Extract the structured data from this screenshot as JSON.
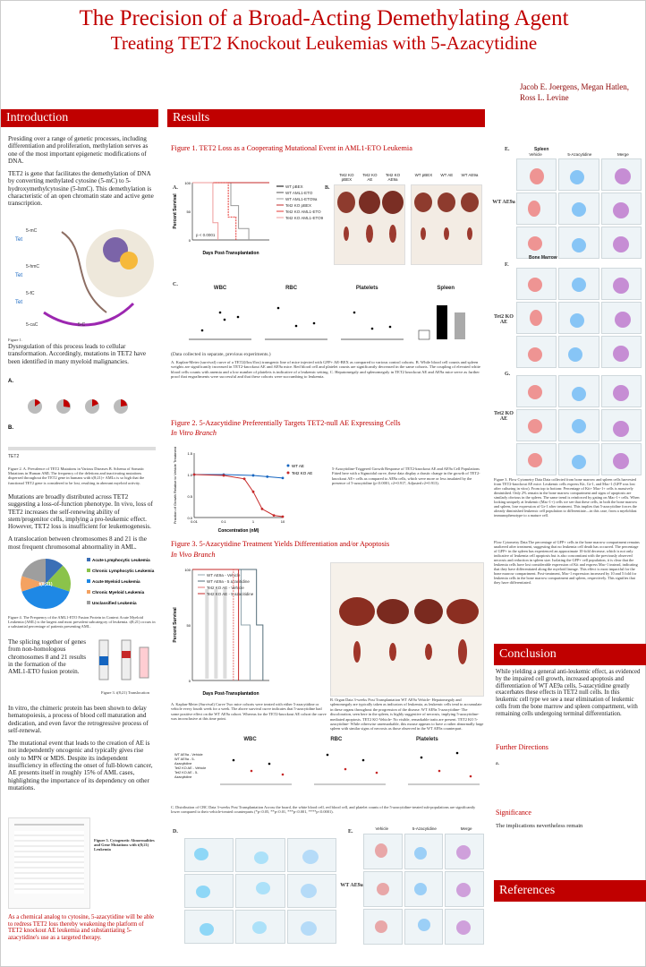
{
  "title_line1": "The Precision of a Broad-Acting Demethylating Agent",
  "title_line2": "Treating TET2 Knockout Leukemias with 5-Azacytidine",
  "authors": [
    "Jacob E. Joergens, Megan Hatlen,",
    "Ross L. Levine"
  ],
  "sections": {
    "introduction": "Introduction",
    "results": "Results",
    "conclusion": "Conclusion",
    "references": "References"
  },
  "intro": {
    "p1": "Presiding over a range of genetic processes, including differentiation and proliferation, methylation serves as one of the most important epigenetic modifications of DNA.",
    "p2": "TET2 is gene that facilitates the demethylation of DNA by converting methylated cytosine (5-mC) to 5-hydroxymethylcytosine (5-hmC). This demethylation is characteristic of an open chromatin state and active gene transcription.",
    "fig1_label": "Figure 1.",
    "p3": "Dysregulation of this process leads to cellular transformation. Accordingly, mutations in TET2 have been identified in many myeloid malignancies.",
    "fig2_caption": "Figure 2. A. Prevalence of TET2 Mutations in Various Diseases B. Schema of Somatic Mutations in Human AML The frequency of the deletions and inactivating mutations dispersed throughout the TET2 gene in humans with t(8;21)+ AMLs is so high that the functional TET2 gene is considered to be lost, resulting in aberrant myeloid activity.",
    "p4": "Mutations are broadly distributed across TET2 suggesting a loss-of-function phenotype. In vivo, loss of TET2 increases the self-renewing ability of stem/progenitor cells, implying a pro-leukemic effect. However, TET2 loss is insufficient for leukemogenesis.",
    "p5": "A translocation between chromosomes 8 and 21 is the most frequent chromosomal abnormality in AML.",
    "fig4_caption": "Figure 4. The Frequency of the AML1-ETO Fusion Protein in Context Acute Myeloid Leukemia (AML) is the largest and most prevalent subcategory of leukemia. t(8;21) occurs in a substantial percentage of patients presenting AML.",
    "p6": "The splicing together of genes from non-homologous chromosomes 8 and 21 results in the formation of the AML1-ETO fusion protein.",
    "fig3_caption": "Figure 3. t(8;21) Translocation",
    "p7": "In vitro, the chimeric protein has been shown to delay hematopoiesis, a process of blood cell maturation and dedication, and even favor the retrogressive process of self-renewal.",
    "p8": "The mutational event that leads to the creation of AE is not independently oncogenic and typically gives rise only to MPN or MDS. Despite its independent insufficiency in effecting the onset of full-blown cancer, AE presents itself in roughly 15% of AML cases, highlighting the importance of its dependency on other mutations.",
    "fig5_caption": "Figure 5. Cytogenetic Abnormalities and Gene Mutations with t(8;21) Leukemia",
    "p9": "As a chemical analog to cytosine, 5-azacytidine will be able to redress TET2 loss thereby weakening the platform of TET2 knockout AE leukemia and substantiating 5-azacytidine's use as a targeted therapy.",
    "pie_legend": [
      "Acute Lymphocytic Leukemia",
      "Chronic Lymphocytic Leukemia",
      "Acute Myeloid Leukemia",
      "Chronic Myeloid Leukemia",
      "Unclassified Leukemia"
    ],
    "pie_label": "t(8;21)",
    "pie_values": [
      12,
      18,
      40,
      10,
      20
    ],
    "pie_colors": [
      "#3b6fb6",
      "#8bc34a",
      "#1e88e5",
      "#f4a261",
      "#9e9e9e"
    ]
  },
  "results": {
    "fig1_title": "Figure 1. TET2 Loss as a Cooperating Mutational Event in AML1-ETO Leukemia",
    "fig1_legend": [
      "WT pBEX",
      "WT AML1-ETO",
      "WT AML1-ETO9a",
      "Tet2 KO pBEX",
      "Tet2 KO AML1-ETO",
      "Tet2 KO AML1-ETO9a"
    ],
    "fig1_xlabel": "Days Post-Transplantation",
    "fig1_ylabel": "Percent Survival",
    "fig1_pval": "p < 0.0001",
    "fig1_b_headers_left": [
      "Tet2 KO pBEX",
      "Tet2 KO AE",
      "Tet2 KO AE9a"
    ],
    "fig1_b_headers_right": [
      "WT pBEX",
      "WT AE",
      "WT AE9a"
    ],
    "fig1_c_titles": [
      "WBC",
      "RBC",
      "Platelets",
      "Spleen"
    ],
    "fig1_note": "(Data collected in separate, previous experiments.)",
    "fig1_caption": "A. Kaplan-Meier (survival) curve of a TET2(flox/flox) transgenic line of mice injected with GFP+ AE-BEX as compared to various control cohorts. B. While blood cell counts and spleen weights are significantly increased in TET2-knockout AE and AE9a mice. Red blood cell and platelet counts are significantly decreased in the same cohorts. The coupling of elevated white blood cells counts with anemia and a low number of platelets is indicative of a leukemic setting. C. Hepatomegaly and splenomegaly in TET2 knockout AE and AE9a mice serve as further proof that engraftments were successful and that these cohorts were succumbing to leukemia.",
    "fig2_title": "Figure 2. 5-Azacytidine Preferentially Targets TET2-null AE Expressing Cells",
    "fig2_sub": "In Vitro Branch",
    "fig2_legend": [
      "WT AE",
      "Tet2 KO AE"
    ],
    "fig2_xlabel": "Concentration (nM)",
    "fig2_ylabel": "Fraction of Growth Relative to Vehicle Treatment",
    "fig2_caption": "5-Azacytidine-Triggered Growth Response of TET2-knockout AE and AE9a Cell Populations Fitted here with a Sigmoidal curve, these data display a drastic change in the growth of TET2-knockout AE+ cells as compared to AE9a cells, which were more or less insulated by the presence of 5-azacytidine (p<0.0001, r2=0.917, Adjusted r2=0.913).",
    "fig3_title": "Figure 3. 5-Azacytidine Treatment Yields Differentiation and/or Apoptosis",
    "fig3_sub": "In Vivo Branch",
    "fig3_legend": [
      "WT AE9a - Vehicle",
      "WT AE9a - 5 azacitidine",
      "Tet2 KO AE - Vehicle",
      "Tet2 KO AE - 5 azacitidine"
    ],
    "fig3_xlabel": "Days Post-Transplantation",
    "fig3_ylabel": "Percent Survival",
    "fig3_a_caption": "A. Kaplan-Meier (Survival) Curve Two mice cohorts were treated with either 5-azacytidine or vehicle every fourth week for a week. The above survival curve indicates that 5-azacytidine had some positive effect on the WT AE9a cohort. Whereas for the TET2-knockout AE cohort the curve was inconclusive at this time point.",
    "fig3_b_caption": "B. Organ Data 3-weeks Post Transplantation WT AE9a Vehicle- Hepatomegaly and splenomegaly are typically taken as indicators of leukemia, as leukemic cells tend to accumulate in these organs throughout the progression of the disease. WT AE9a 5-azacytidine- The discoloration, seen here in the spleen, is highly suggestive of necrosis, implying 5-azacytidine-mediated apoptosis. TET2 KO Vehicle- No visible, remarkable traits are present. TET2 KO 5-azacytidine- While otherwise unremarkable, this mouse appears to have a rather abnormally large spleen with similar signs of necrosis as those observed in the WT AE9a counterpart.",
    "fig3_c_titles": [
      "WBC",
      "RBC",
      "Platelets"
    ],
    "fig3_c_legend": [
      "WT AE9a - Vehicle",
      "WT AE9a - 5-Azacytidine",
      "Tet2 KO AE - Vehicle",
      "Tet2 KO AE - 5-Azacytidine"
    ],
    "fig3_c_caption": "C. Distribution of CBC Data 3-weeks Post Transplantation Across the board, the white blood cell, red blood cell, and platelet counts of the 5-azacytidine-treated sub-populations are significantly lower compared to their vehicle-treated counterparts (*p<0.05, **p<0.01, ***p<0.001, ****p<0.0001).",
    "fig3_d_label": "D.",
    "fig3_e_label": "E.",
    "fig3_e_side": "WT AE9a",
    "flow_headers": [
      "Vehicle",
      "5-Azacytidine",
      "Merge"
    ]
  },
  "right_col": {
    "e_label": "E.",
    "f_label": "F.",
    "g_label": "G.",
    "e_side": "WT AE9a",
    "f_side": "Tet2 KO AE",
    "g_side": "Tet2 KO AE",
    "spleen": "Spleen",
    "bone_marrow": "Bone Marrow",
    "flow_caption": "Figure 3. Flow Cytometry Data Data collected from bone marrow and spleen cells harvested from TET2-knockout AE mice. Leukemic cells express Kit, Gr-1, and Mac-1 (GFP was lost after culturing in vitro). From top to bottom: Percentage of Kit+ Mac-1+ cells is massively diminished. Only 2% remain in the bone marrow compartment and signs of apoptosis are similarly obvious in the spleen. The same trend is reinforced by gating on Mac-1+ cells. When looking uniquely at leukemic (Mac-1+) cells we see that these cells, in both the bone marrow and spleen, lose expression of Gr-1 after treatment. This implies that 5-azacytidine forces the already diminished leukemic cell population to differentiate—in this case, from a myeloblast immunophenotype to a mature cell.",
    "flow_caption2": "Flow Cytometry Data The percentage of GFP+ cells in the bone marrow compartment remains unaltered after treatment, suggesting that no leukemia cell death has occurred. The percentage of GFP+ in the spleen has experienced an approximate 10-fold decrease, which is not only indicative of leukemia cell apoptosis but is also concomitant with the previously observed necrosis and reduction in spleen size. Isolating the GFP+ cell population, it is clear that the leukemia cells have lost considerable expression of Kit and express Mac-1 instead, indicating that they have differentiated along the myeloid lineage. This effect is most impactful for the bone marrow compartment. Post-treatment, Mac-1 expression increased by 10 and 5 fold for leukemia cells in the bone marrow compartment and spleen, respectively. This signifies that they have differentiated.",
    "conclusion_text": "While yielding a general anti-leukemic effect, as evidenced by the impaired cell growth, increased apoptosis and differentiation of WT AE9a cells, 5-azacytidine greatly exacerbates these effects in TET2 null cells. In this leukemic cell type we see a near elimination of leukemic cells from the bone marrow and spleen compartment, with remaining cells undergoing terminal differentiation.",
    "further_title": "Further Directions",
    "further_text": "a.",
    "significance_title": "Significance",
    "significance_text": "The implications nevertheless remain"
  },
  "chart_data": [
    {
      "type": "line",
      "title": "Figure 1. TET2 Loss as a Cooperating Mutational Event in AML1-ETO Leukemia",
      "xlabel": "Days Post-Transplantation",
      "ylabel": "Percent Survival",
      "xlim": [
        0,
        300
      ],
      "ylim": [
        0,
        100
      ],
      "series": [
        {
          "name": "WT pBEX",
          "x": [
            0,
            300
          ],
          "y": [
            100,
            100
          ]
        },
        {
          "name": "WT AML1-ETO",
          "x": [
            0,
            300
          ],
          "y": [
            100,
            100
          ]
        },
        {
          "name": "WT AML1-ETO9a",
          "x": [
            0,
            120,
            150,
            180,
            220
          ],
          "y": [
            100,
            100,
            60,
            20,
            0
          ]
        },
        {
          "name": "Tet2 KO pBEX",
          "x": [
            0,
            300
          ],
          "y": [
            100,
            100
          ]
        },
        {
          "name": "Tet2 KO AML1-ETO",
          "x": [
            0,
            110,
            140,
            170
          ],
          "y": [
            100,
            100,
            40,
            0
          ]
        },
        {
          "name": "Tet2 KO AML1-ETO9a",
          "x": [
            0,
            60,
            80,
            100
          ],
          "y": [
            100,
            100,
            30,
            0
          ]
        }
      ]
    },
    {
      "type": "line",
      "title": "Figure 2. 5-Azacytidine Preferentially Targets TET2-null AE Expressing Cells",
      "xlabel": "Concentration (nM)",
      "ylabel": "Fraction of Growth Relative to Vehicle Treatment",
      "xscale": "log",
      "xlim": [
        0.01,
        10
      ],
      "ylim": [
        0,
        1.5
      ],
      "series": [
        {
          "name": "WT AE",
          "x": [
            0.01,
            0.1,
            1,
            3,
            10
          ],
          "y": [
            1.0,
            1.0,
            0.98,
            0.95,
            0.92
          ]
        },
        {
          "name": "Tet2 KO AE",
          "x": [
            0.01,
            0.1,
            0.5,
            1,
            2,
            5,
            10
          ],
          "y": [
            1.0,
            0.98,
            0.9,
            0.6,
            0.2,
            0.05,
            0.02
          ]
        }
      ]
    },
    {
      "type": "line",
      "title": "Figure 3. 5-Azacytidine Treatment Yields Differentiation and/or Apoptosis",
      "xlabel": "Days Post-Transplantation",
      "ylabel": "Percent Survival",
      "xlim": [
        0,
        60
      ],
      "ylim": [
        0,
        100
      ],
      "series": [
        {
          "name": "WT AE9a - Vehicle",
          "x": [
            0,
            30,
            38,
            45
          ],
          "y": [
            100,
            100,
            50,
            0
          ]
        },
        {
          "name": "WT AE9a - 5 azacitidine",
          "x": [
            0,
            40,
            50,
            55
          ],
          "y": [
            100,
            100,
            50,
            0
          ]
        },
        {
          "name": "Tet2 KO AE - Vehicle",
          "x": [
            0,
            25,
            32
          ],
          "y": [
            100,
            100,
            0
          ]
        },
        {
          "name": "Tet2 KO AE - 5 azacitidine",
          "x": [
            0,
            28,
            36
          ],
          "y": [
            100,
            100,
            0
          ]
        }
      ]
    }
  ]
}
